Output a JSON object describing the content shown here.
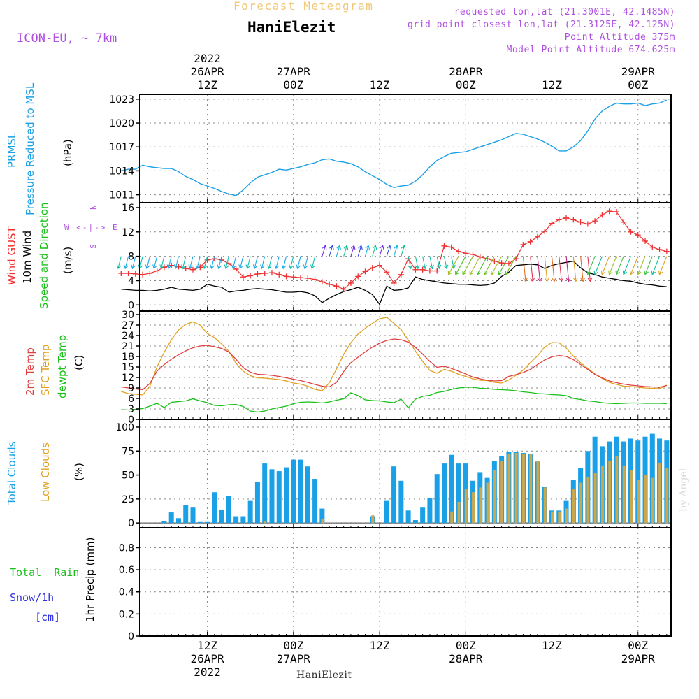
{
  "header": {
    "forecast_title": "Forecast Meteogram",
    "station": "HaniElezit",
    "model": "ICON-EU, ~ 7km",
    "requested": "requested lon,lat (21.3001E, 42.1485N)",
    "grid_point": "grid point closest lon,lat (21.3125E, 42.125N)",
    "point_altitude": "Point Altitude 375m",
    "model_altitude": "Model Point Altitude 674.625m",
    "footer_station": "HaniElezit",
    "watermark": "by Angel"
  },
  "colors": {
    "pressure": "#1aa0e6",
    "gust": "#ee3030",
    "wind": "#000000",
    "temp": "#e04040",
    "sfc": "#e0a020",
    "dewpt": "#18c018",
    "total_clouds": "#1aa0e6",
    "low_clouds": "#c9a850",
    "snow": "#3030e0",
    "purple": "#b050e0",
    "title_gold": "#f0c878"
  },
  "time_axis": {
    "top": [
      {
        "h": 12,
        "lines": [
          "2022",
          "26APR",
          "12Z"
        ]
      },
      {
        "h": 24,
        "lines": [
          "27APR",
          "00Z"
        ]
      },
      {
        "h": 36,
        "lines": [
          "12Z"
        ]
      },
      {
        "h": 48,
        "lines": [
          "28APR",
          "00Z"
        ]
      },
      {
        "h": 60,
        "lines": [
          "12Z"
        ]
      },
      {
        "h": 72,
        "lines": [
          "29APR",
          "00Z"
        ]
      }
    ],
    "bottom": [
      {
        "h": 12,
        "lines": [
          "12Z",
          "26APR",
          "2022"
        ]
      },
      {
        "h": 24,
        "lines": [
          "00Z",
          "27APR"
        ]
      },
      {
        "h": 36,
        "lines": [
          "12Z"
        ]
      },
      {
        "h": 48,
        "lines": [
          "00Z",
          "28APR"
        ]
      },
      {
        "h": 60,
        "lines": [
          "12Z"
        ]
      },
      {
        "h": 72,
        "lines": [
          "00Z",
          "29APR"
        ]
      }
    ]
  },
  "labels": {
    "pressure": {
      "l1": "PRMSL",
      "l2": "Pressure Reduced to MSL",
      "unit": "(hPa)"
    },
    "wind": {
      "l1": "Wind GUST",
      "l2": "10m Wind",
      "l3": "Speed and Direction",
      "unit": "(m/s)",
      "compass": "W <-|-> E",
      "n": "N",
      "s": "S"
    },
    "temp": {
      "l1": "2m Temp",
      "l2": "SFC Temp",
      "l3": "dewpt Temp",
      "unit": "(C)"
    },
    "clouds": {
      "l1": "Total Clouds",
      "l2": "Low Clouds",
      "unit": "(%)"
    },
    "precip": {
      "total": "Total",
      "rain": "Rain",
      "snow": "Snow/1h",
      "snow_unit": "[cm]",
      "unit": "1hr Precip (mm)"
    }
  },
  "chart_data": [
    {
      "type": "line",
      "id": "pressure",
      "ylabel": "(hPa)",
      "ylim": [
        1010,
        1023.6
      ],
      "yticks": [
        1011,
        1014,
        1017,
        1020,
        1023
      ],
      "x": [
        0,
        1,
        2,
        3,
        4,
        5,
        6,
        7,
        8,
        9,
        10,
        11,
        12,
        13,
        14,
        15,
        16,
        17,
        18,
        19,
        20,
        21,
        22,
        23,
        24,
        25,
        26,
        27,
        28,
        29,
        30,
        31,
        32,
        33,
        34,
        35,
        36,
        37,
        38,
        39,
        40,
        41,
        42,
        43,
        44,
        45,
        46,
        47,
        48,
        49,
        50,
        51,
        52,
        53,
        54,
        55,
        56,
        57,
        58,
        59,
        60,
        61,
        62,
        63,
        64,
        65,
        66,
        67,
        68,
        69,
        70,
        71,
        72,
        73,
        74,
        75,
        76
      ],
      "series": [
        {
          "name": "PRMSL",
          "values": [
            1014.0,
            1014.2,
            1014.2,
            1014.7,
            1014.5,
            1014.4,
            1014.3,
            1014.3,
            1013.9,
            1013.3,
            1012.9,
            1012.4,
            1012.1,
            1011.8,
            1011.4,
            1011.1,
            1010.9,
            1011.6,
            1012.5,
            1013.2,
            1013.5,
            1013.8,
            1014.2,
            1014.1,
            1014.3,
            1014.5,
            1014.8,
            1015.0,
            1015.4,
            1015.5,
            1015.2,
            1015.1,
            1014.9,
            1014.5,
            1013.9,
            1013.4,
            1012.9,
            1012.3,
            1011.9,
            1012.1,
            1012.2,
            1012.7,
            1013.5,
            1014.5,
            1015.3,
            1015.8,
            1016.2,
            1016.3,
            1016.4,
            1016.7,
            1017.0,
            1017.3,
            1017.6,
            1017.9,
            1018.3,
            1018.7,
            1018.6,
            1018.3,
            1018.0,
            1017.6,
            1017.1,
            1016.5,
            1016.5,
            1017.0,
            1017.8,
            1019.0,
            1020.5,
            1021.5,
            1022.1,
            1022.5,
            1022.4,
            1022.4,
            1022.5,
            1022.2,
            1022.4,
            1022.5,
            1022.9
          ]
        }
      ]
    },
    {
      "type": "line",
      "id": "wind",
      "ylabel": "(m/s)",
      "ylim": [
        -1,
        16.8
      ],
      "yticks": [
        0,
        4,
        8,
        12,
        16
      ],
      "x": [
        0,
        1,
        2,
        3,
        4,
        5,
        6,
        7,
        8,
        9,
        10,
        11,
        12,
        13,
        14,
        15,
        16,
        17,
        18,
        19,
        20,
        21,
        22,
        23,
        24,
        25,
        26,
        27,
        28,
        29,
        30,
        31,
        32,
        33,
        34,
        35,
        36,
        37,
        38,
        39,
        40,
        41,
        42,
        43,
        44,
        45,
        46,
        47,
        48,
        49,
        50,
        51,
        52,
        53,
        54,
        55,
        56,
        57,
        58,
        59,
        60,
        61,
        62,
        63,
        64,
        65,
        66,
        67,
        68,
        69,
        70,
        71,
        72,
        73,
        74,
        75,
        76
      ],
      "series": [
        {
          "name": "Wind GUST",
          "values": [
            5.2,
            5.2,
            5.1,
            5.0,
            5.2,
            5.6,
            6.2,
            6.5,
            6.3,
            6.0,
            5.8,
            6.2,
            7.4,
            7.6,
            7.4,
            6.8,
            5.9,
            4.6,
            4.8,
            5.1,
            5.2,
            5.3,
            5.0,
            4.7,
            4.6,
            4.5,
            4.4,
            4.2,
            3.8,
            3.4,
            3.1,
            2.6,
            3.6,
            4.7,
            5.5,
            6.1,
            6.5,
            5.4,
            3.6,
            5.0,
            7.6,
            5.8,
            5.8,
            5.6,
            5.6,
            9.7,
            9.5,
            8.8,
            8.5,
            8.3,
            7.9,
            7.6,
            7.2,
            6.9,
            6.8,
            7.6,
            9.9,
            10.4,
            11.2,
            12.1,
            13.4,
            14.0,
            14.3,
            14.0,
            13.6,
            13.3,
            13.8,
            14.8,
            15.4,
            15.3,
            13.6,
            12.0,
            11.5,
            10.5,
            9.5,
            9.1,
            8.8
          ]
        },
        {
          "name": "10m Wind",
          "values": [
            2.6,
            2.5,
            2.4,
            2.4,
            2.3,
            2.4,
            2.6,
            2.9,
            2.6,
            2.5,
            2.4,
            2.6,
            3.4,
            3.1,
            2.9,
            2.1,
            2.3,
            2.4,
            2.6,
            2.7,
            2.6,
            2.5,
            2.3,
            2.1,
            2.1,
            2.2,
            2.0,
            1.5,
            0.4,
            1.1,
            1.7,
            2.2,
            2.5,
            2.9,
            2.4,
            1.7,
            0.1,
            3.1,
            2.4,
            2.5,
            2.8,
            4.6,
            4.2,
            4.0,
            3.8,
            3.6,
            3.5,
            3.4,
            3.4,
            3.3,
            3.2,
            3.3,
            3.6,
            4.7,
            5.4,
            6.5,
            6.6,
            6.7,
            6.6,
            6.0,
            6.5,
            6.8,
            7.0,
            7.2,
            6.1,
            5.3,
            5.0,
            4.6,
            4.4,
            4.2,
            4.0,
            3.9,
            3.6,
            3.4,
            3.3,
            3.1,
            3.0
          ]
        }
      ]
    },
    {
      "type": "line",
      "id": "temp",
      "ylabel": "(C)",
      "ylim": [
        0,
        31
      ],
      "yticks": [
        0,
        3,
        6,
        9,
        12,
        15,
        18,
        21,
        24,
        27,
        30
      ],
      "x": [
        0,
        1,
        2,
        3,
        4,
        5,
        6,
        7,
        8,
        9,
        10,
        11,
        12,
        13,
        14,
        15,
        16,
        17,
        18,
        19,
        20,
        21,
        22,
        23,
        24,
        25,
        26,
        27,
        28,
        29,
        30,
        31,
        32,
        33,
        34,
        35,
        36,
        37,
        38,
        39,
        40,
        41,
        42,
        43,
        44,
        45,
        46,
        47,
        48,
        49,
        50,
        51,
        52,
        53,
        54,
        55,
        56,
        57,
        58,
        59,
        60,
        61,
        62,
        63,
        64,
        65,
        66,
        67,
        68,
        69,
        70,
        71,
        72,
        73,
        74,
        75,
        76
      ],
      "series": [
        {
          "name": "2m Temp",
          "values": [
            9.3,
            9.0,
            8.7,
            8.5,
            10.3,
            13.8,
            15.7,
            17.2,
            18.5,
            19.6,
            20.5,
            21.0,
            21.2,
            20.8,
            20.3,
            19.3,
            17.2,
            14.8,
            13.5,
            12.9,
            12.8,
            12.6,
            12.3,
            11.9,
            11.5,
            11.1,
            10.6,
            10.0,
            9.5,
            9.3,
            10.6,
            13.7,
            16.2,
            17.8,
            19.3,
            20.7,
            21.8,
            22.6,
            23.0,
            22.8,
            22.1,
            20.6,
            18.7,
            16.6,
            14.9,
            15.2,
            14.6,
            13.8,
            13.0,
            12.1,
            11.6,
            11.2,
            11.0,
            11.1,
            12.3,
            12.8,
            13.4,
            14.3,
            15.7,
            17.0,
            17.9,
            18.3,
            18.0,
            17.1,
            15.7,
            14.3,
            12.9,
            11.9,
            11.0,
            10.5,
            10.1,
            9.8,
            9.6,
            9.4,
            9.3,
            9.2,
            9.7
          ]
        },
        {
          "name": "SFC Temp",
          "values": [
            8.0,
            7.4,
            7.2,
            7.0,
            9.5,
            15.0,
            19.2,
            22.8,
            25.6,
            27.2,
            27.9,
            27.0,
            24.6,
            23.4,
            21.6,
            19.5,
            16.1,
            13.8,
            12.5,
            11.9,
            11.8,
            11.6,
            11.4,
            11.0,
            10.4,
            10.1,
            9.5,
            8.6,
            8.2,
            10.5,
            14.4,
            18.6,
            21.9,
            24.4,
            26.1,
            27.5,
            28.8,
            29.2,
            27.5,
            25.7,
            22.7,
            19.5,
            16.6,
            14.0,
            13.2,
            14.3,
            13.8,
            12.9,
            12.3,
            11.6,
            11.2,
            11.1,
            10.6,
            10.4,
            11.3,
            12.6,
            14.1,
            16.2,
            18.2,
            20.7,
            22.0,
            21.9,
            20.4,
            18.1,
            16.2,
            14.6,
            13.0,
            11.7,
            10.6,
            10.0,
            9.5,
            9.4,
            9.2,
            9.0,
            8.9,
            8.8,
            9.8
          ]
        },
        {
          "name": "dewpt Temp",
          "values": [
            2.8,
            2.7,
            2.9,
            3.1,
            3.8,
            4.6,
            3.4,
            4.9,
            5.1,
            5.3,
            5.9,
            5.3,
            4.8,
            4.0,
            3.9,
            4.2,
            4.3,
            3.7,
            2.4,
            2.1,
            2.4,
            3.0,
            3.4,
            3.8,
            4.5,
            4.9,
            5.0,
            4.9,
            4.7,
            5.0,
            5.5,
            5.9,
            7.6,
            6.8,
            5.6,
            5.4,
            5.3,
            5.0,
            4.8,
            5.8,
            3.3,
            5.8,
            6.6,
            6.9,
            7.7,
            8.0,
            8.6,
            9.0,
            9.2,
            9.2,
            8.9,
            8.8,
            8.6,
            8.5,
            8.4,
            8.2,
            7.9,
            7.7,
            7.4,
            7.3,
            7.1,
            7.0,
            6.8,
            6.0,
            5.7,
            5.3,
            5.1,
            4.8,
            4.6,
            4.5,
            4.6,
            4.7,
            4.7,
            4.6,
            4.6,
            4.6,
            4.5
          ]
        }
      ]
    },
    {
      "type": "bar",
      "id": "clouds",
      "ylabel": "(%)",
      "ylim": [
        -5,
        108
      ],
      "yticks": [
        0,
        25,
        50,
        75,
        100
      ],
      "x": [
        0,
        1,
        2,
        3,
        4,
        5,
        6,
        7,
        8,
        9,
        10,
        11,
        12,
        13,
        14,
        15,
        16,
        17,
        18,
        19,
        20,
        21,
        22,
        23,
        24,
        25,
        26,
        27,
        28,
        29,
        30,
        31,
        32,
        33,
        34,
        35,
        36,
        37,
        38,
        39,
        40,
        41,
        42,
        43,
        44,
        45,
        46,
        47,
        48,
        49,
        50,
        51,
        52,
        53,
        54,
        55,
        56,
        57,
        58,
        59,
        60,
        61,
        62,
        63,
        64,
        65,
        66,
        67,
        68,
        69,
        70,
        71,
        72,
        73,
        74,
        75,
        76
      ],
      "series": [
        {
          "name": "Total Clouds",
          "values": [
            0,
            0,
            0,
            0,
            0,
            0,
            2,
            11,
            5,
            19,
            16,
            1,
            1,
            32,
            14,
            28,
            7,
            7,
            23,
            43,
            62,
            56,
            54,
            58,
            66,
            66,
            59,
            46,
            15,
            0,
            0,
            0,
            0,
            0,
            0,
            7,
            0,
            23,
            59,
            44,
            13,
            3,
            16,
            26,
            51,
            62,
            71,
            62,
            62,
            44,
            53,
            47,
            65,
            70,
            74,
            74,
            73,
            72,
            64,
            38,
            13,
            13,
            23,
            45,
            57,
            75,
            90,
            80,
            85,
            90,
            85,
            88,
            86,
            90,
            93,
            88,
            86
          ]
        },
        {
          "name": "Low Clouds",
          "values": [
            0,
            0,
            0,
            0,
            0,
            0,
            0,
            0,
            0,
            0,
            0,
            0,
            0,
            0,
            0,
            0,
            0,
            0,
            0,
            0,
            2,
            0,
            0,
            0,
            0,
            0,
            0,
            0,
            4,
            0,
            0,
            0,
            0,
            0,
            0,
            8,
            0,
            0,
            0,
            0,
            0,
            0,
            0,
            0,
            0,
            0,
            12,
            22,
            35,
            32,
            37,
            42,
            55,
            65,
            72,
            73,
            72,
            72,
            65,
            37,
            12,
            12,
            15,
            35,
            42,
            48,
            52,
            60,
            65,
            70,
            60,
            55,
            45,
            50,
            47,
            62,
            57
          ]
        }
      ]
    },
    {
      "type": "line",
      "id": "precip",
      "ylabel": "1hr Precip (mm)",
      "ylim": [
        0,
        0.98
      ],
      "yticks": [
        0,
        0.2,
        0.4,
        0.6,
        0.8
      ],
      "ytick_labels": [
        "0",
        "0.2",
        "0.4",
        "0.6",
        "0.8"
      ],
      "x": [
        0,
        76
      ],
      "series": [
        {
          "name": "Total",
          "values": [
            0,
            0
          ]
        }
      ]
    }
  ]
}
